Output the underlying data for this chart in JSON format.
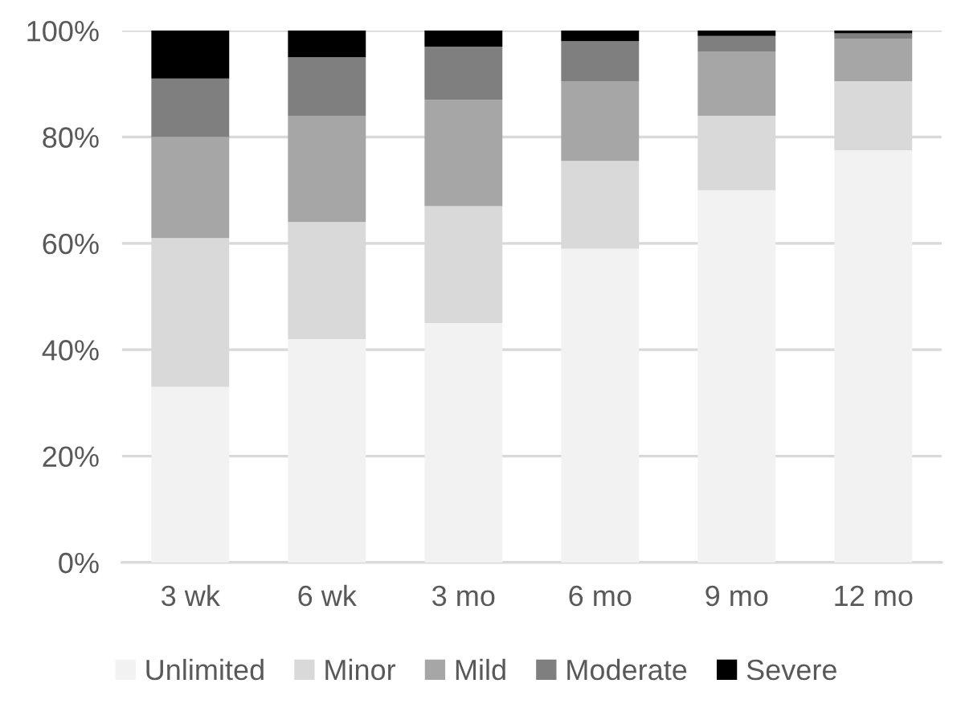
{
  "chart_data": {
    "type": "bar",
    "stacked": true,
    "categories": [
      "3 wk",
      "6 wk",
      "3 mo",
      "6 mo",
      "9 mo",
      "12 mo"
    ],
    "series": [
      {
        "name": "Unlimited",
        "color": "#f2f2f2",
        "values": [
          33,
          42,
          45,
          59,
          70,
          77.5
        ]
      },
      {
        "name": "Minor",
        "color": "#d9d9d9",
        "values": [
          28,
          22,
          22,
          16.5,
          14,
          13
        ]
      },
      {
        "name": "Mild",
        "color": "#a6a6a6",
        "values": [
          19,
          20,
          20,
          15,
          12,
          8
        ]
      },
      {
        "name": "Moderate",
        "color": "#7f7f7f",
        "values": [
          11,
          11,
          10,
          7.5,
          3,
          1
        ]
      },
      {
        "name": "Severe",
        "color": "#000000",
        "values": [
          9,
          5,
          3,
          2,
          1,
          0.5
        ]
      }
    ],
    "ylim": [
      0,
      100
    ],
    "yticks": [
      {
        "value": 0,
        "label": "0%"
      },
      {
        "value": 20,
        "label": "20%"
      },
      {
        "value": 40,
        "label": "40%"
      },
      {
        "value": 60,
        "label": "60%"
      },
      {
        "value": 80,
        "label": "80%"
      },
      {
        "value": 100,
        "label": "100%"
      }
    ],
    "grid": "y",
    "legend": "bottom"
  }
}
